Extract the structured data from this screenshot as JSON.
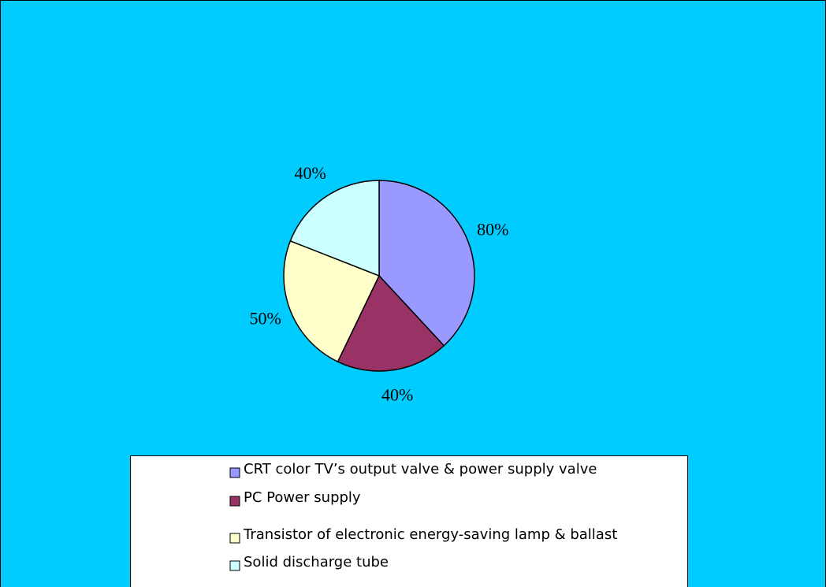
{
  "chart_data": {
    "type": "pie",
    "categories": [
      "CRT color TV’s output valve & power supply valve",
      "PC Power supply",
      "Transistor of electronic energy-saving lamp & ballast",
      "Solid discharge tube"
    ],
    "values": [
      80,
      40,
      50,
      40
    ],
    "value_labels": [
      "80%",
      "40%",
      "50%",
      "40%"
    ],
    "colors": [
      "#9999ff",
      "#993366",
      "#ffffcc",
      "#ccffff"
    ],
    "legend": "bottom"
  }
}
